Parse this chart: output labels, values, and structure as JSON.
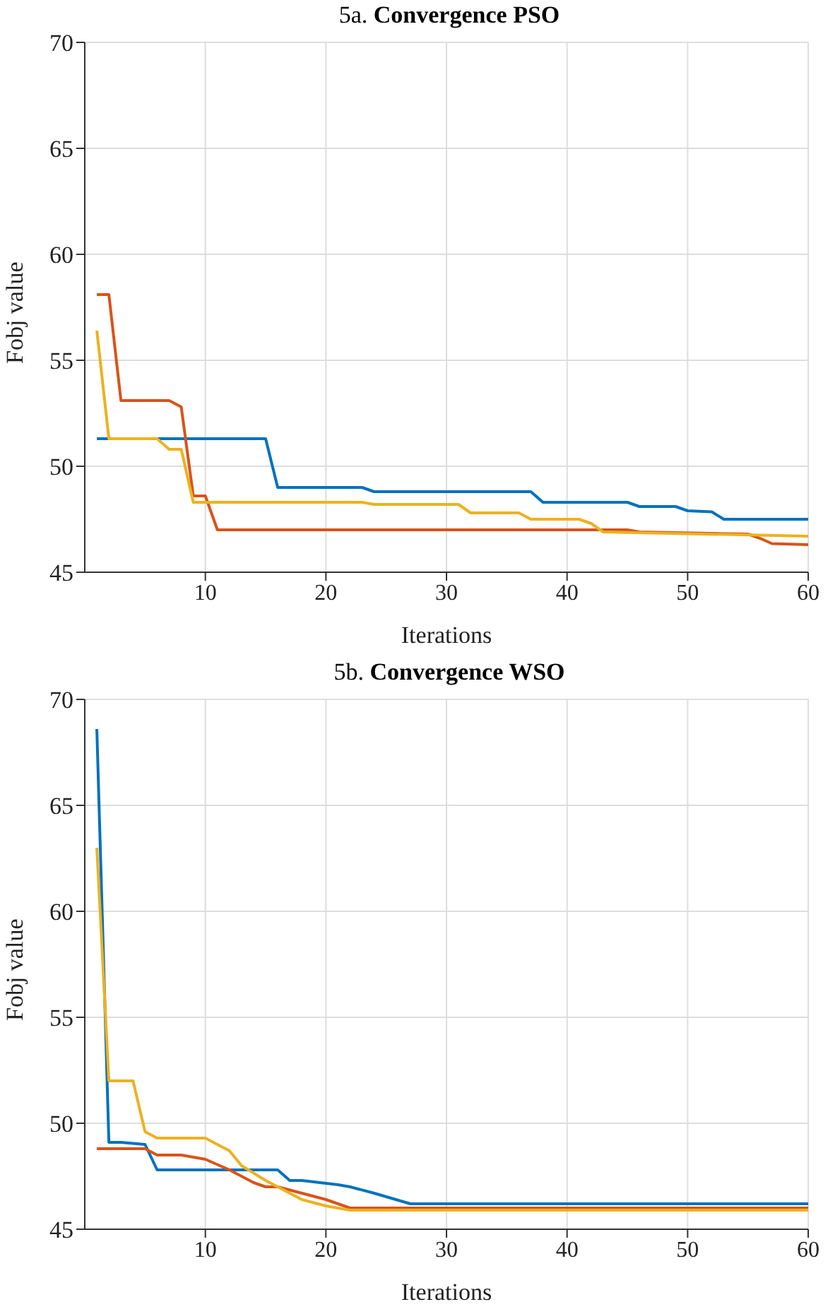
{
  "chart_data": [
    {
      "type": "line",
      "title": "5a. Convergence PSO",
      "xlabel": "Iterations",
      "ylabel": "Fobj value",
      "xlim": [
        0,
        60
      ],
      "xticks": [
        10,
        20,
        30,
        40,
        50,
        60
      ],
      "ylim": [
        45,
        70
      ],
      "yticks": [
        45,
        50,
        55,
        60,
        65,
        70
      ],
      "grid": true,
      "line_style": "solid",
      "series": [
        {
          "color": "#0072bd",
          "x": [
            1,
            15,
            16,
            23,
            24,
            37,
            38,
            45,
            46,
            48,
            49,
            50,
            52,
            53,
            60
          ],
          "values": [
            51.3,
            51.3,
            49.0,
            49.0,
            48.8,
            48.8,
            48.3,
            48.3,
            48.1,
            48.1,
            48.1,
            47.9,
            47.85,
            47.5,
            47.5
          ]
        },
        {
          "color": "#d95319",
          "x": [
            1,
            2,
            3,
            7,
            8,
            9,
            10,
            11,
            45,
            46,
            55,
            56,
            57,
            60
          ],
          "values": [
            58.1,
            58.1,
            53.1,
            53.1,
            52.8,
            48.6,
            48.6,
            47.0,
            47.0,
            46.9,
            46.8,
            46.6,
            46.35,
            46.3
          ]
        },
        {
          "color": "#edb120",
          "x": [
            1,
            2,
            6,
            7,
            8,
            9,
            23,
            24,
            31,
            32,
            36,
            37,
            41,
            42,
            43,
            60
          ],
          "values": [
            56.4,
            51.3,
            51.3,
            50.8,
            50.8,
            48.3,
            48.3,
            48.2,
            48.2,
            47.8,
            47.8,
            47.5,
            47.5,
            47.3,
            46.9,
            46.7
          ]
        }
      ]
    },
    {
      "type": "line",
      "title": "5b. Convergence WSO",
      "xlabel": "Iterations",
      "ylabel": "Fobj value",
      "xlim": [
        0,
        60
      ],
      "xticks": [
        10,
        20,
        30,
        40,
        50,
        60
      ],
      "ylim": [
        45,
        70
      ],
      "yticks": [
        45,
        50,
        55,
        60,
        65,
        70
      ],
      "grid": true,
      "line_style": "solid",
      "series": [
        {
          "color": "#0072bd",
          "x": [
            1,
            2,
            3,
            5,
            6,
            16,
            17,
            18,
            21,
            22,
            24,
            27,
            60
          ],
          "values": [
            68.6,
            49.1,
            49.1,
            49.0,
            47.8,
            47.8,
            47.3,
            47.3,
            47.1,
            47.0,
            46.7,
            46.2,
            46.2
          ]
        },
        {
          "color": "#d95319",
          "x": [
            1,
            5,
            6,
            8,
            10,
            12,
            14,
            15,
            16,
            18,
            20,
            22,
            60
          ],
          "values": [
            48.8,
            48.8,
            48.5,
            48.5,
            48.3,
            47.8,
            47.2,
            47.0,
            47.0,
            46.7,
            46.4,
            46.0,
            46.0
          ]
        },
        {
          "color": "#edb120",
          "x": [
            1,
            2,
            4,
            5,
            6,
            10,
            12,
            13,
            15,
            18,
            20,
            22,
            60
          ],
          "values": [
            63.0,
            52.0,
            52.0,
            49.6,
            49.3,
            49.3,
            48.7,
            48.0,
            47.3,
            46.4,
            46.1,
            45.9,
            45.9
          ]
        }
      ]
    }
  ]
}
